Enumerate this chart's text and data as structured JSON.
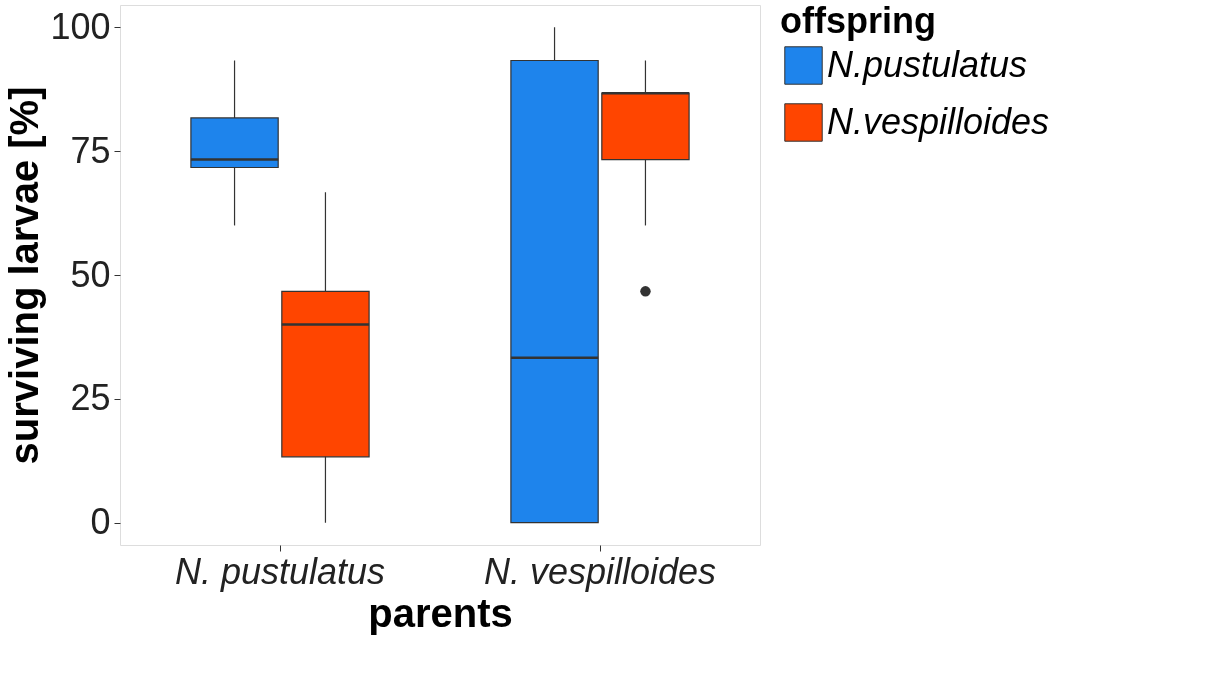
{
  "chart_data": {
    "type": "box",
    "xlabel": "parents",
    "ylabel": "surviving larvae [%]",
    "legend_title": "offspring",
    "categories": [
      "N. pustulatus",
      "N. vespilloides"
    ],
    "series": [
      {
        "name": "N.pustulatus",
        "color": "#1e84ec",
        "boxes": [
          {
            "low": 60,
            "q1": 71.7,
            "median": 73.3,
            "q3": 81.7,
            "high": 93.3
          },
          {
            "low": 0,
            "q1": 0,
            "median": 33.3,
            "q3": 93.3,
            "high": 100
          }
        ]
      },
      {
        "name": "N.vespilloides",
        "color": "#ff4500",
        "boxes": [
          {
            "low": 0,
            "q1": 13.3,
            "median": 40,
            "q3": 46.7,
            "high": 66.7
          },
          {
            "low": 60,
            "q1": 73.3,
            "median": 86.7,
            "q3": 86.7,
            "high": 93.3,
            "outliers": [
              46.7
            ]
          }
        ]
      }
    ],
    "ylim": [
      -4.5,
      104.5
    ],
    "yticks": [
      0,
      25,
      50,
      75,
      100
    ],
    "grid": false,
    "legend": "right"
  }
}
